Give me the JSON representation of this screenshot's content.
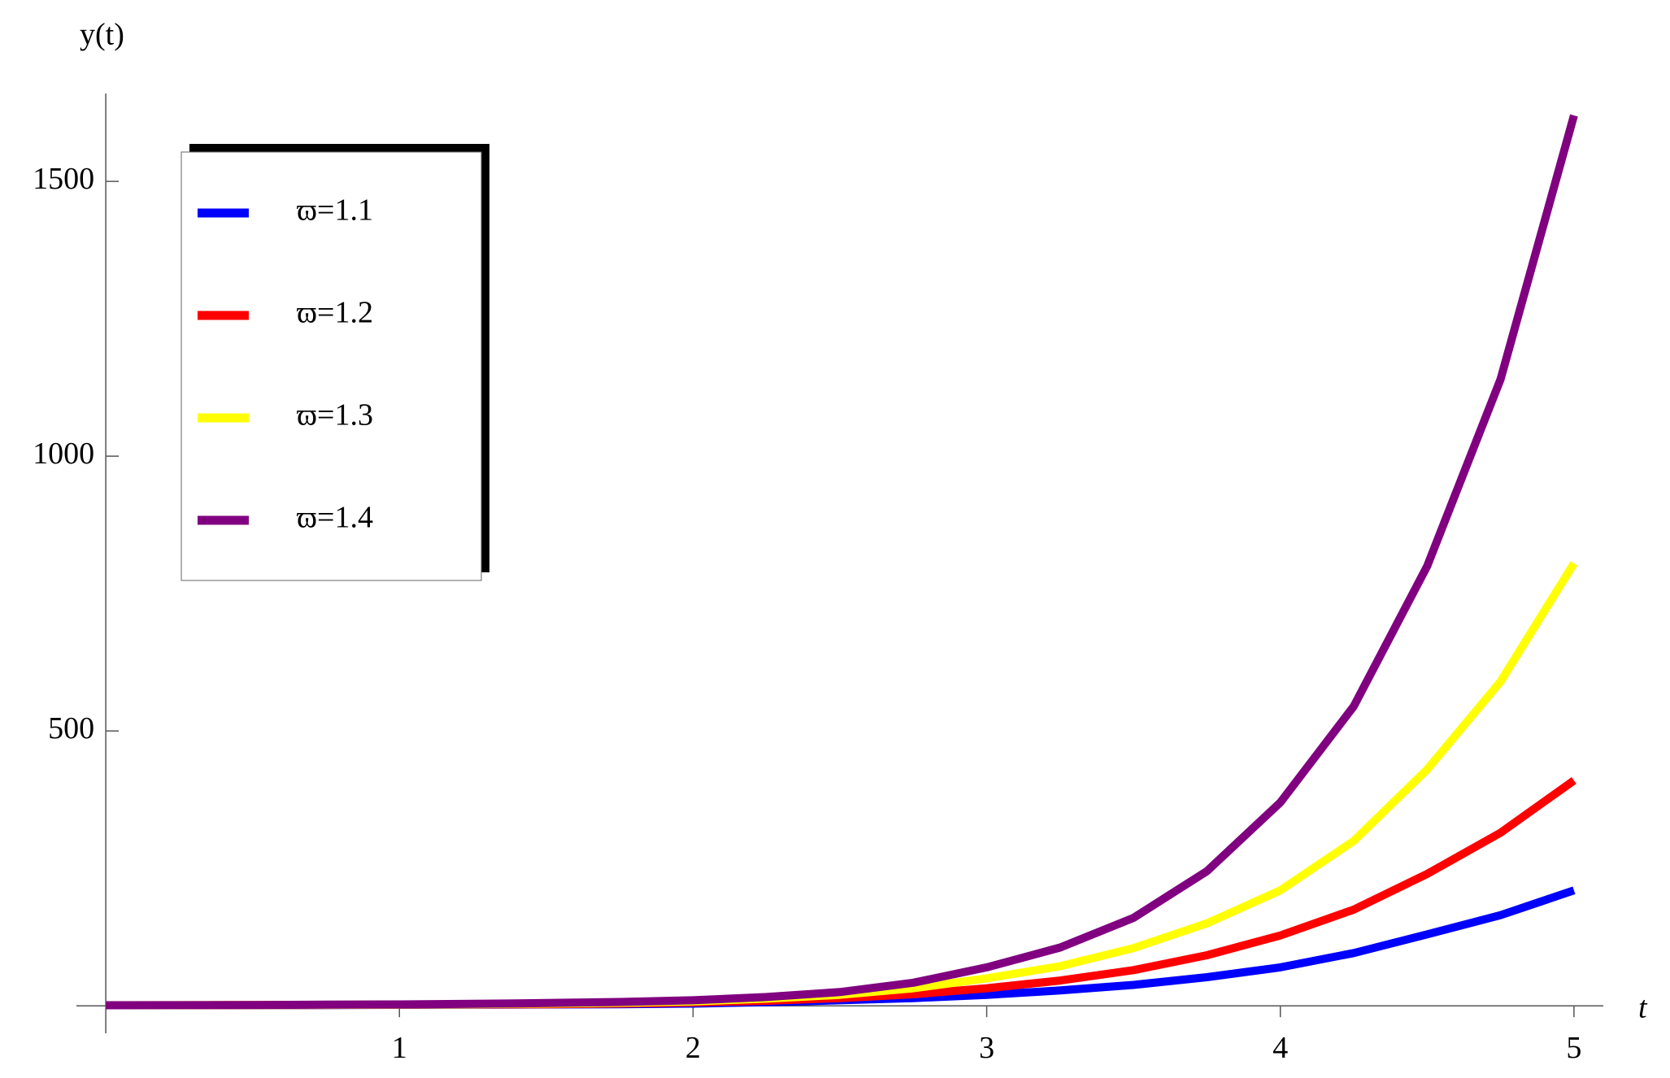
{
  "chart_data": {
    "type": "line",
    "y_label": "y(t)",
    "x_label": "t",
    "x": [
      0,
      0.25,
      0.5,
      0.75,
      1,
      1.25,
      1.5,
      1.75,
      2,
      2.25,
      2.5,
      2.75,
      3,
      3.25,
      3.5,
      3.75,
      4,
      4.25,
      4.5,
      4.75,
      5
    ],
    "series": [
      {
        "name": "ϖ=1.1",
        "color": "#0000ff",
        "values": [
          1,
          1.1,
          1.2,
          1.4,
          1.7,
          2,
          2.5,
          3,
          4,
          6.5,
          10,
          14,
          20,
          28,
          38,
          52,
          70,
          96,
          130,
          165,
          210
        ]
      },
      {
        "name": "ϖ=1.2",
        "color": "#ff0000",
        "values": [
          1,
          1.1,
          1.3,
          1.6,
          2,
          2.5,
          3,
          4,
          6,
          9,
          14,
          21,
          32,
          46,
          65,
          92,
          128,
          175,
          240,
          315,
          410
        ]
      },
      {
        "name": "ϖ=1.3",
        "color": "#ffff00",
        "values": [
          1,
          1.2,
          1.4,
          1.8,
          2.2,
          3,
          4,
          5.5,
          8,
          13,
          20,
          32,
          50,
          72,
          105,
          150,
          210,
          300,
          430,
          590,
          805
        ]
      },
      {
        "name": "ϖ=1.4",
        "color": "#800080",
        "values": [
          1,
          1.2,
          1.5,
          2,
          2.5,
          3.5,
          5,
          7,
          10,
          16,
          25,
          42,
          70,
          106,
          160,
          245,
          370,
          545,
          800,
          1140,
          1620
        ]
      }
    ],
    "xlim": [
      -0.1,
      5.1
    ],
    "ylim": [
      -50,
      1660
    ],
    "xticks": [
      1,
      2,
      3,
      4,
      5
    ],
    "yticks": [
      500,
      1000,
      1500
    ],
    "legend": "upper-left"
  }
}
